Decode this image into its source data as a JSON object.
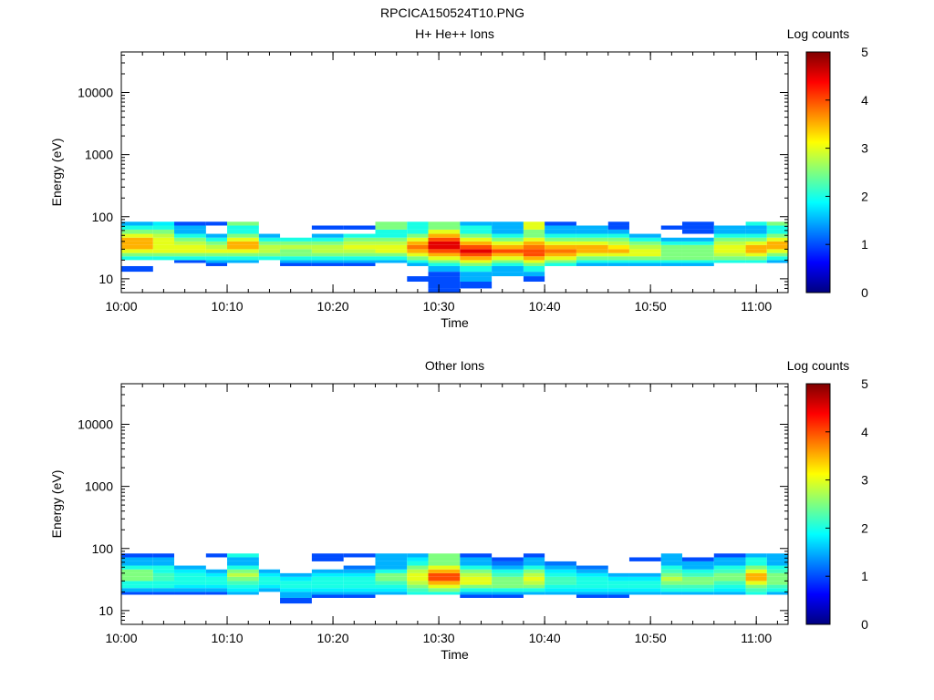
{
  "figure_title": "RPCICA150524T10.PNG",
  "colormap": [
    "#00007f",
    "#0000ff",
    "#007fff",
    "#00ffff",
    "#7fff7f",
    "#ffff00",
    "#ff7f00",
    "#ff0000",
    "#7f0000"
  ],
  "chart_data": [
    {
      "type": "heatmap",
      "title": "H+ He++ Ions",
      "xlabel": "Time",
      "ylabel": "Energy (eV)",
      "x_scale": "time",
      "y_scale": "log",
      "x_ticks": [
        "10:00",
        "10:10",
        "10:20",
        "10:30",
        "10:40",
        "10:50",
        "11:00"
      ],
      "y_ticks": [
        "10",
        "100",
        "1000",
        "10000"
      ],
      "xlim": [
        "10:00",
        "11:03"
      ],
      "ylim": [
        6,
        45000
      ],
      "colorbar": {
        "label": "Log counts",
        "range": [
          0,
          5
        ],
        "ticks": [
          "0",
          "1",
          "2",
          "3",
          "4",
          "5"
        ]
      },
      "time_bins": [
        "10:00",
        "10:03",
        "10:05",
        "10:08",
        "10:10",
        "10:13",
        "10:15",
        "10:18",
        "10:21",
        "10:24",
        "10:27",
        "10:29",
        "10:32",
        "10:35",
        "10:38",
        "10:40",
        "10:43",
        "10:46",
        "10:48",
        "10:51",
        "10:53",
        "10:56",
        "10:59",
        "11:01",
        "11:03"
      ],
      "energy_bins": [
        6,
        7,
        9,
        11,
        13,
        16,
        18,
        20,
        23,
        26,
        30,
        35,
        40,
        46,
        53,
        62,
        72,
        83,
        96
      ],
      "log_counts": [
        [
          null,
          null,
          null,
          null,
          1.0,
          null,
          null,
          2.0,
          2.5,
          3.0,
          3.5,
          3.5,
          3.5,
          3.0,
          2.5,
          2.0,
          1.5,
          null
        ],
        [
          null,
          null,
          null,
          null,
          null,
          null,
          null,
          2.0,
          2.5,
          3.0,
          3.0,
          3.0,
          3.0,
          2.8,
          2.5,
          2.0,
          1.8,
          null
        ],
        [
          null,
          null,
          null,
          null,
          null,
          null,
          1.0,
          2.0,
          2.5,
          3.0,
          3.0,
          2.8,
          2.5,
          2.0,
          1.5,
          1.5,
          1.0,
          null
        ],
        [
          null,
          null,
          null,
          null,
          null,
          1.0,
          1.5,
          2.0,
          2.5,
          3.0,
          2.8,
          2.5,
          2.0,
          1.5,
          null,
          null,
          1.0,
          null
        ],
        [
          null,
          null,
          null,
          null,
          null,
          null,
          1.5,
          2.0,
          2.5,
          3.0,
          3.5,
          3.5,
          3.0,
          2.5,
          2.0,
          2.0,
          2.5,
          null
        ],
        [
          null,
          null,
          null,
          null,
          null,
          null,
          null,
          2.0,
          2.5,
          2.8,
          2.8,
          2.5,
          2.0,
          1.5,
          null,
          null,
          null,
          null
        ],
        [
          null,
          null,
          null,
          null,
          null,
          1.0,
          1.5,
          2.0,
          2.5,
          2.5,
          2.8,
          2.5,
          2.0,
          null,
          null,
          null,
          null,
          null
        ],
        [
          null,
          null,
          null,
          null,
          null,
          1.0,
          1.5,
          2.0,
          2.5,
          2.8,
          2.8,
          2.5,
          2.0,
          1.5,
          null,
          1.0,
          null,
          null
        ],
        [
          null,
          null,
          null,
          null,
          null,
          1.0,
          1.5,
          2.0,
          2.5,
          2.8,
          3.0,
          2.8,
          2.5,
          2.0,
          null,
          1.0,
          null,
          null
        ],
        [
          null,
          null,
          null,
          null,
          null,
          null,
          1.5,
          2.0,
          2.5,
          3.0,
          3.0,
          2.8,
          2.5,
          2.0,
          2.0,
          2.5,
          2.5,
          null
        ],
        [
          null,
          null,
          1.0,
          null,
          null,
          1.5,
          2.0,
          2.5,
          3.0,
          3.5,
          3.8,
          3.5,
          3.0,
          2.5,
          2.0,
          2.0,
          2.0,
          null
        ],
        [
          1.0,
          1.0,
          1.0,
          1.0,
          1.5,
          2.0,
          2.5,
          3.0,
          3.5,
          4.0,
          4.5,
          4.5,
          4.0,
          3.5,
          3.0,
          2.5,
          2.5,
          null
        ],
        [
          null,
          1.0,
          1.5,
          1.5,
          2.0,
          2.5,
          3.0,
          3.5,
          4.0,
          4.5,
          4.0,
          3.5,
          3.0,
          2.5,
          2.0,
          2.0,
          1.5,
          null
        ],
        [
          null,
          null,
          null,
          1.5,
          1.5,
          2.0,
          2.5,
          3.0,
          3.5,
          4.0,
          3.5,
          3.0,
          2.5,
          2.0,
          1.5,
          1.5,
          1.5,
          null
        ],
        [
          null,
          null,
          1.0,
          1.5,
          2.0,
          2.5,
          3.0,
          3.5,
          4.0,
          4.0,
          3.8,
          3.5,
          3.0,
          2.5,
          2.5,
          3.0,
          3.0,
          null
        ],
        [
          null,
          null,
          null,
          null,
          null,
          2.0,
          2.5,
          3.0,
          3.5,
          3.8,
          3.5,
          3.0,
          2.5,
          2.0,
          1.5,
          1.5,
          1.0,
          null
        ],
        [
          null,
          null,
          null,
          null,
          null,
          1.5,
          2.0,
          2.5,
          3.0,
          3.5,
          3.5,
          3.0,
          2.5,
          2.0,
          1.5,
          1.5,
          null,
          null
        ],
        [
          null,
          null,
          null,
          null,
          null,
          1.5,
          2.0,
          2.5,
          3.0,
          3.5,
          3.2,
          2.8,
          2.5,
          2.0,
          1.5,
          1.0,
          1.0,
          null
        ],
        [
          null,
          null,
          null,
          null,
          null,
          1.5,
          2.0,
          2.5,
          3.0,
          3.0,
          2.8,
          2.5,
          2.0,
          1.5,
          null,
          null,
          null,
          null
        ],
        [
          null,
          null,
          null,
          null,
          null,
          1.5,
          2.0,
          2.5,
          2.5,
          2.5,
          2.5,
          2.0,
          1.5,
          null,
          null,
          1.0,
          null,
          null
        ],
        [
          null,
          null,
          null,
          null,
          null,
          1.5,
          2.0,
          2.5,
          2.5,
          2.5,
          2.5,
          2.0,
          1.5,
          null,
          1.0,
          1.0,
          1.0,
          null
        ],
        [
          null,
          null,
          null,
          null,
          null,
          null,
          2.0,
          2.5,
          2.8,
          3.0,
          3.0,
          2.8,
          2.5,
          2.0,
          1.5,
          1.5,
          null,
          null
        ],
        [
          null,
          null,
          null,
          null,
          null,
          null,
          2.0,
          2.5,
          3.0,
          3.5,
          3.5,
          3.0,
          2.5,
          2.0,
          1.5,
          1.5,
          2.0,
          null
        ],
        [
          null,
          null,
          null,
          null,
          null,
          null,
          1.5,
          2.0,
          2.5,
          3.0,
          3.5,
          3.5,
          3.0,
          2.5,
          2.0,
          2.0,
          2.5,
          null
        ]
      ]
    },
    {
      "type": "heatmap",
      "title": "Other Ions",
      "xlabel": "Time",
      "ylabel": "Energy (eV)",
      "x_scale": "time",
      "y_scale": "log",
      "x_ticks": [
        "10:00",
        "10:10",
        "10:20",
        "10:30",
        "10:40",
        "10:50",
        "11:00"
      ],
      "y_ticks": [
        "10",
        "100",
        "1000",
        "10000"
      ],
      "xlim": [
        "10:00",
        "11:03"
      ],
      "ylim": [
        6,
        45000
      ],
      "colorbar": {
        "label": "Log counts",
        "range": [
          0,
          5
        ],
        "ticks": [
          "0",
          "1",
          "2",
          "3",
          "4",
          "5"
        ]
      },
      "time_bins": [
        "10:00",
        "10:03",
        "10:05",
        "10:08",
        "10:10",
        "10:13",
        "10:15",
        "10:18",
        "10:21",
        "10:24",
        "10:27",
        "10:29",
        "10:32",
        "10:35",
        "10:38",
        "10:40",
        "10:43",
        "10:46",
        "10:48",
        "10:51",
        "10:53",
        "10:56",
        "10:59",
        "11:01",
        "11:03"
      ],
      "energy_bins": [
        6,
        7,
        9,
        11,
        13,
        16,
        18,
        20,
        23,
        26,
        30,
        35,
        40,
        46,
        53,
        62,
        72,
        83,
        96
      ],
      "log_counts": [
        [
          null,
          null,
          null,
          null,
          null,
          null,
          1.0,
          1.5,
          2.0,
          2.0,
          2.5,
          2.5,
          2.5,
          2.0,
          1.5,
          1.5,
          1.0,
          null
        ],
        [
          null,
          null,
          null,
          null,
          null,
          null,
          1.0,
          1.5,
          2.0,
          2.0,
          2.2,
          2.2,
          2.0,
          2.0,
          1.5,
          1.5,
          1.0,
          null
        ],
        [
          null,
          null,
          null,
          null,
          null,
          null,
          1.0,
          1.5,
          1.8,
          2.0,
          2.0,
          2.0,
          1.8,
          1.5,
          null,
          null,
          null,
          null
        ],
        [
          null,
          null,
          null,
          null,
          null,
          null,
          1.0,
          1.5,
          1.8,
          2.0,
          2.0,
          1.8,
          1.5,
          null,
          null,
          null,
          1.0,
          null
        ],
        [
          null,
          null,
          null,
          null,
          null,
          null,
          1.5,
          1.8,
          2.0,
          2.2,
          2.5,
          2.8,
          2.5,
          2.0,
          1.5,
          1.5,
          2.0,
          null
        ],
        [
          null,
          null,
          null,
          null,
          null,
          null,
          null,
          1.5,
          1.8,
          2.0,
          2.0,
          1.8,
          1.5,
          null,
          null,
          null,
          null,
          null
        ],
        [
          null,
          null,
          null,
          null,
          1.0,
          1.5,
          1.5,
          1.8,
          2.0,
          2.0,
          1.8,
          1.5,
          null,
          null,
          null,
          null,
          null,
          null
        ],
        [
          null,
          null,
          null,
          null,
          null,
          1.0,
          1.5,
          1.8,
          2.0,
          2.0,
          2.0,
          1.8,
          1.5,
          null,
          null,
          1.0,
          1.0,
          null
        ],
        [
          null,
          null,
          null,
          null,
          null,
          1.0,
          1.5,
          1.8,
          2.0,
          2.0,
          2.0,
          1.8,
          1.5,
          1.2,
          null,
          null,
          1.0,
          null
        ],
        [
          null,
          null,
          null,
          null,
          null,
          null,
          1.5,
          1.8,
          2.0,
          2.2,
          2.5,
          2.5,
          2.0,
          1.5,
          1.5,
          1.5,
          1.5,
          null
        ],
        [
          null,
          null,
          null,
          null,
          null,
          null,
          2.0,
          2.2,
          2.5,
          2.8,
          3.0,
          3.0,
          2.8,
          2.5,
          2.0,
          1.8,
          1.5,
          null
        ],
        [
          null,
          null,
          null,
          null,
          null,
          null,
          2.0,
          2.5,
          3.0,
          3.5,
          4.0,
          4.0,
          3.5,
          3.0,
          2.5,
          2.5,
          2.5,
          null
        ],
        [
          null,
          null,
          null,
          null,
          null,
          1.0,
          1.5,
          2.0,
          2.5,
          3.0,
          3.0,
          2.8,
          2.5,
          2.0,
          1.5,
          1.5,
          1.0,
          null
        ],
        [
          null,
          null,
          null,
          null,
          null,
          1.0,
          1.5,
          2.0,
          2.5,
          2.5,
          2.5,
          2.2,
          2.0,
          1.5,
          1.2,
          1.0,
          null,
          null
        ],
        [
          null,
          null,
          null,
          null,
          null,
          null,
          1.5,
          2.0,
          2.5,
          2.8,
          3.0,
          2.8,
          2.5,
          2.0,
          1.5,
          1.5,
          1.0,
          null
        ],
        [
          null,
          null,
          null,
          null,
          null,
          null,
          1.5,
          1.8,
          2.0,
          2.2,
          2.2,
          2.0,
          1.8,
          1.5,
          1.2,
          null,
          null,
          null
        ],
        [
          null,
          null,
          null,
          null,
          null,
          1.0,
          1.5,
          1.8,
          2.0,
          2.0,
          2.0,
          1.8,
          1.5,
          1.2,
          null,
          null,
          null,
          null
        ],
        [
          null,
          null,
          null,
          null,
          null,
          1.0,
          1.5,
          1.8,
          2.0,
          2.0,
          1.8,
          1.5,
          null,
          null,
          null,
          null,
          null,
          null
        ],
        [
          null,
          null,
          null,
          null,
          null,
          null,
          1.5,
          1.8,
          2.0,
          2.0,
          1.8,
          1.5,
          null,
          null,
          null,
          1.0,
          null,
          null
        ],
        [
          null,
          null,
          null,
          null,
          null,
          null,
          1.5,
          2.0,
          2.2,
          2.5,
          2.8,
          2.5,
          2.2,
          2.0,
          1.5,
          1.5,
          1.5,
          null
        ],
        [
          null,
          null,
          null,
          null,
          null,
          null,
          1.5,
          2.0,
          2.2,
          2.5,
          2.5,
          2.2,
          2.0,
          1.5,
          1.5,
          1.0,
          null,
          null
        ],
        [
          null,
          null,
          null,
          null,
          null,
          null,
          1.5,
          1.8,
          2.0,
          2.2,
          2.5,
          2.5,
          2.2,
          2.0,
          1.5,
          1.5,
          1.0,
          null
        ],
        [
          null,
          null,
          null,
          null,
          null,
          null,
          2.0,
          2.2,
          2.5,
          3.0,
          3.5,
          3.5,
          3.0,
          2.5,
          2.0,
          2.0,
          1.5,
          null
        ],
        [
          null,
          null,
          null,
          null,
          null,
          null,
          1.5,
          2.0,
          2.2,
          2.5,
          2.5,
          2.5,
          2.2,
          2.0,
          1.5,
          1.5,
          1.5,
          null
        ]
      ]
    }
  ]
}
